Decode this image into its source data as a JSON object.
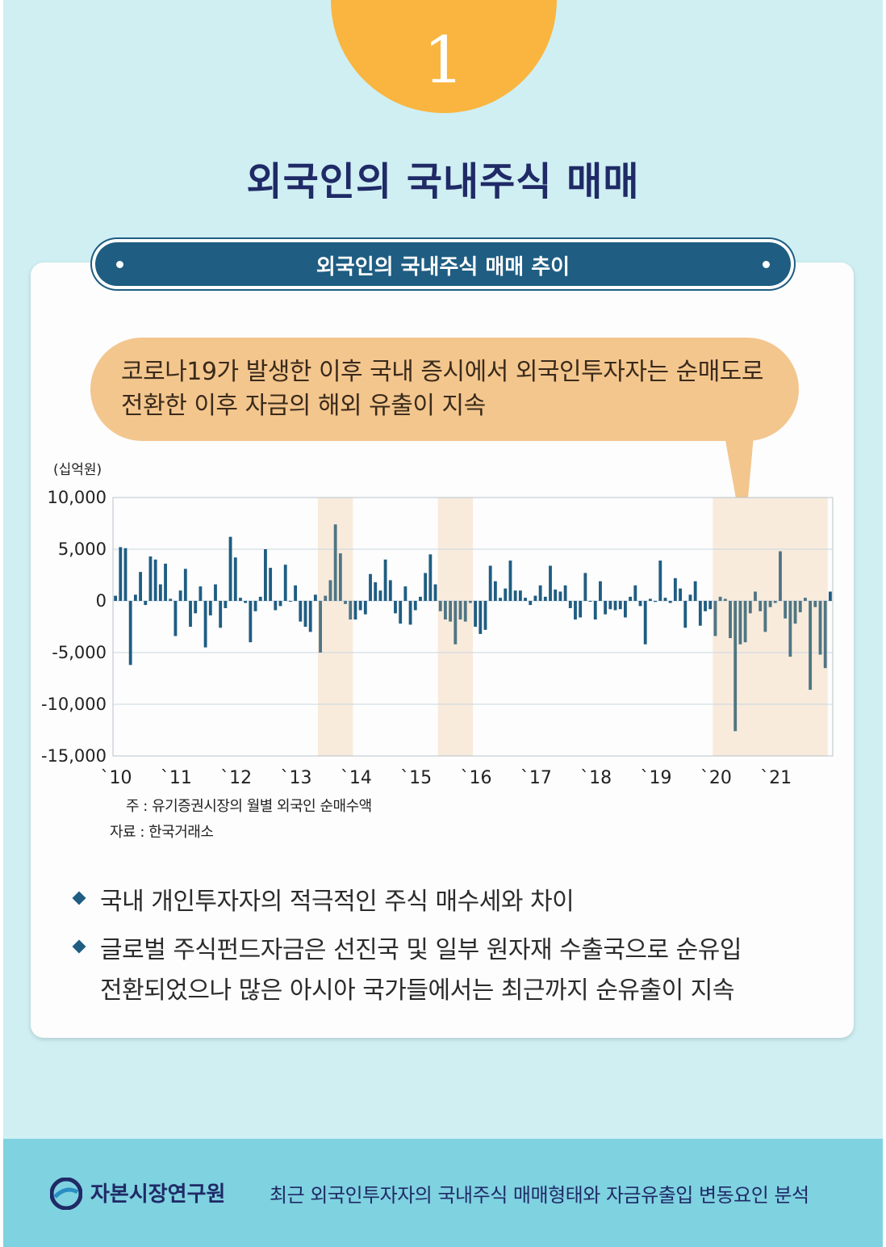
{
  "badge_number": "1",
  "main_title": "외국인의 국내주식 매매",
  "banner_title": "외국인의 국내주식 매매 추이",
  "callout": {
    "line1": "코로나19가 발생한 이후 국내 증시에서 외국인투자자는 순매도로",
    "line2": "전환한 이후 자금의 해외 유출이 지속"
  },
  "notes": {
    "note": "주 : 유기증권시장의 월별 외국인 순매수액",
    "source": "자료 : 한국거래소"
  },
  "bullets": [
    {
      "line1": "국내 개인투자자의 적극적인 주식 매수세와 차이",
      "line2": ""
    },
    {
      "line1": "글로벌 주식펀드자금은 선진국 및 일부 원자재 수출국으로 순유입",
      "line2": "전환되었으나 많은 아시아 국가들에서는 최근까지 순유출이 지속"
    }
  ],
  "footer": {
    "org_name": "자본시장연구원",
    "report_title": "최근 외국인투자자의 국내주식 매매형태와 자금유출입 변동요인 분석"
  },
  "colors": {
    "bar_normal": "#1f5d82",
    "bar_highlight": "#4f7583",
    "shade": "#f8ebdc",
    "badge": "#f9b53f",
    "banner": "#1f5d82",
    "callout": "#f3c68e"
  },
  "chart_data": {
    "type": "bar",
    "unit_label": "(십억원)",
    "ylim": [
      -15000,
      10000
    ],
    "yticks": [
      10000,
      5000,
      0,
      -5000,
      -10000,
      -15000
    ],
    "ytick_labels": [
      "10,000",
      "5,000",
      "0",
      "-5,000",
      "-10,000",
      "-15,000"
    ],
    "year_labels": [
      "`10",
      "`11",
      "`12",
      "`13",
      "`14",
      "`15",
      "`16",
      "`17",
      "`18",
      "`19",
      "`20",
      "`21"
    ],
    "start": "2010-01",
    "highlight_periods": [
      [
        "2013-06",
        "2013-12"
      ],
      [
        "2015-06",
        "2015-12"
      ],
      [
        "2020-01",
        "2021-11"
      ]
    ],
    "values": [
      500,
      5200,
      5100,
      -6200,
      600,
      2800,
      -400,
      4300,
      4000,
      1600,
      3600,
      200,
      -3400,
      1000,
      3100,
      -2500,
      -1200,
      1400,
      -4500,
      -1400,
      1600,
      -2600,
      -700,
      6200,
      4200,
      300,
      -200,
      -4000,
      -1000,
      400,
      5000,
      3200,
      -900,
      -500,
      3500,
      0,
      1500,
      -2000,
      -2500,
      -3000,
      600,
      -5000,
      500,
      2000,
      7400,
      4600,
      -300,
      -1800,
      -1800,
      -900,
      -1300,
      2600,
      1800,
      1000,
      4000,
      2000,
      -1200,
      -2200,
      1400,
      -2300,
      -900,
      400,
      2700,
      4500,
      1600,
      -1000,
      -1800,
      -2000,
      -4200,
      -1800,
      -2000,
      -200,
      -2500,
      -3200,
      -2800,
      3400,
      1900,
      300,
      1200,
      3900,
      1000,
      1000,
      300,
      -400,
      500,
      1500,
      400,
      3400,
      1100,
      900,
      1500,
      -700,
      -1800,
      -1600,
      2700,
      0,
      -1800,
      1900,
      -1300,
      -800,
      -900,
      -800,
      -1600,
      400,
      1500,
      -500,
      -4200,
      200,
      -100,
      3900,
      300,
      -200,
      2200,
      1200,
      -2600,
      600,
      1900,
      -2400,
      -1000,
      -800,
      -3400,
      400,
      200,
      -3600,
      -12600,
      -4200,
      -4000,
      -1200,
      900,
      -1000,
      -3000,
      -600,
      -200,
      4800,
      -1700,
      -5400,
      -2200,
      -1100,
      300,
      -8600,
      -600,
      -5200,
      -6500,
      900
    ]
  }
}
